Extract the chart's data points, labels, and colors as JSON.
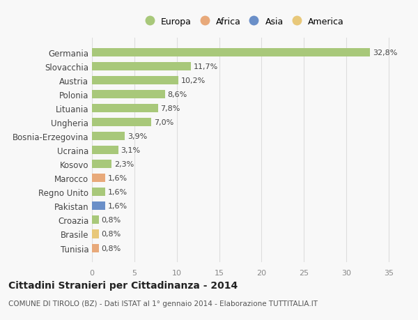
{
  "categories": [
    "Tunisia",
    "Brasile",
    "Croazia",
    "Pakistan",
    "Regno Unito",
    "Marocco",
    "Kosovo",
    "Ucraina",
    "Bosnia-Erzegovina",
    "Ungheria",
    "Lituania",
    "Polonia",
    "Austria",
    "Slovacchia",
    "Germania"
  ],
  "values": [
    0.8,
    0.8,
    0.8,
    1.6,
    1.6,
    1.6,
    2.3,
    3.1,
    3.9,
    7.0,
    7.8,
    8.6,
    10.2,
    11.7,
    32.8
  ],
  "labels": [
    "0,8%",
    "0,8%",
    "0,8%",
    "1,6%",
    "1,6%",
    "1,6%",
    "2,3%",
    "3,1%",
    "3,9%",
    "7,0%",
    "7,8%",
    "8,6%",
    "10,2%",
    "11,7%",
    "32,8%"
  ],
  "colors": [
    "#e8a97a",
    "#e8c87a",
    "#a8c87a",
    "#6a8fc8",
    "#a8c87a",
    "#e8a97a",
    "#a8c87a",
    "#a8c87a",
    "#a8c87a",
    "#a8c87a",
    "#a8c87a",
    "#a8c87a",
    "#a8c87a",
    "#a8c87a",
    "#a8c87a"
  ],
  "continent": [
    "Africa",
    "America",
    "Europa",
    "Asia",
    "Europa",
    "Africa",
    "Europa",
    "Europa",
    "Europa",
    "Europa",
    "Europa",
    "Europa",
    "Europa",
    "Europa",
    "Europa"
  ],
  "legend_labels": [
    "Europa",
    "Africa",
    "Asia",
    "America"
  ],
  "legend_colors": [
    "#a8c87a",
    "#e8a97a",
    "#6a8fc8",
    "#e8c87a"
  ],
  "title": "Cittadini Stranieri per Cittadinanza - 2014",
  "subtitle": "COMUNE DI TIROLO (BZ) - Dati ISTAT al 1° gennaio 2014 - Elaborazione TUTTITALIA.IT",
  "xlim": [
    0,
    36
  ],
  "xticks": [
    0,
    5,
    10,
    15,
    20,
    25,
    30,
    35
  ],
  "bg_color": "#f8f8f8",
  "grid_color": "#dddddd"
}
